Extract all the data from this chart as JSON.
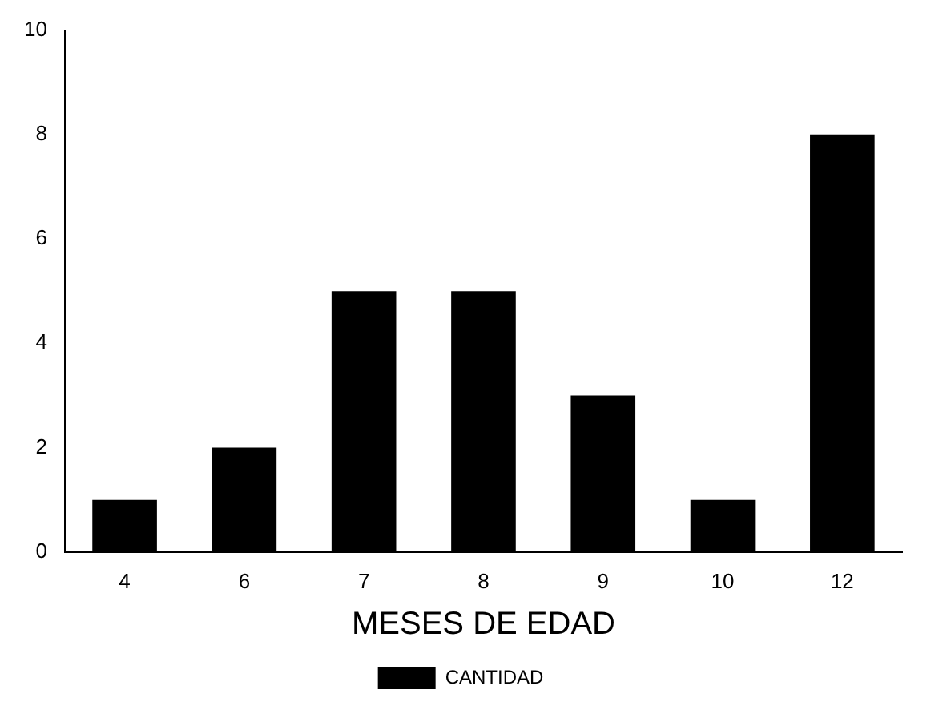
{
  "chart_data": {
    "type": "bar",
    "xlabel": "MESES DE EDAD",
    "categories": [
      "4",
      "6",
      "7",
      "8",
      "9",
      "10",
      "12"
    ],
    "series": [
      {
        "name": "CANTIDAD",
        "color": "#000000",
        "values": [
          1,
          2,
          5,
          5,
          3,
          1,
          8
        ]
      }
    ],
    "ylim": [
      0,
      10
    ],
    "yticks": [
      0,
      2,
      4,
      6,
      8,
      10
    ],
    "grid": false,
    "legend": "bottom"
  }
}
